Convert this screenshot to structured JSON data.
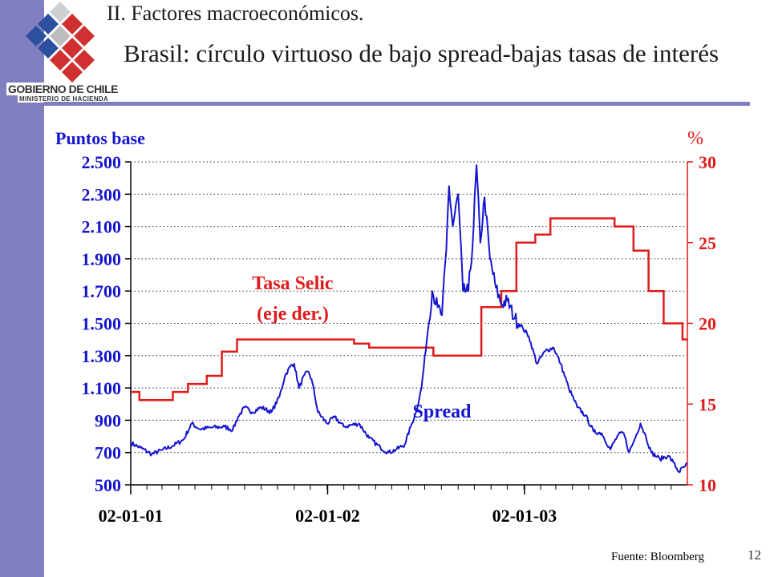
{
  "header": {
    "section_title": "II. Factores macroeconómicos.",
    "slide_title": "Brasil: círculo virtuoso de bajo spread-bajas tasas de interés",
    "logo_text_line1": "GOBIERNO DE CHILE",
    "logo_text_line2": "MINISTERIO DE HACIENDA"
  },
  "footer": {
    "source": "Fuente: Bloomberg",
    "page_number": "12"
  },
  "colors": {
    "spread": "#1515d0",
    "selic": "#e01b1b",
    "band": "#7f7fbf"
  },
  "chart_data": {
    "type": "line",
    "left_axis": {
      "label": "Puntos base",
      "min": 500,
      "max": 2500,
      "ticks": [
        500,
        700,
        900,
        1100,
        1300,
        1500,
        1700,
        1900,
        2100,
        2300,
        2500
      ],
      "tick_labels": [
        "500",
        "700",
        "900",
        "1.100",
        "1.300",
        "1.500",
        "1.700",
        "1.900",
        "2.100",
        "2.300",
        "2.500"
      ]
    },
    "right_axis": {
      "label": "%",
      "min": 10,
      "max": 30,
      "ticks": [
        10,
        15,
        20,
        25,
        30
      ],
      "tick_labels": [
        "10",
        "15",
        "20",
        "25",
        "30"
      ]
    },
    "x_axis": {
      "start": "2001-01-02",
      "end": "2003-10-31",
      "tick_labels": [
        "02-01-01",
        "02-01-02",
        "02-01-03"
      ],
      "tick_dates": [
        "2001-01-02",
        "2002-01-02",
        "2003-01-02"
      ]
    },
    "grid": "horizontal dotted",
    "series": [
      {
        "name": "Spread",
        "axis": "left",
        "annotation": "Spread",
        "points": [
          [
            "2001-01-02",
            760
          ],
          [
            "2001-01-20",
            730
          ],
          [
            "2001-02-10",
            690
          ],
          [
            "2001-03-01",
            715
          ],
          [
            "2001-03-20",
            740
          ],
          [
            "2001-04-10",
            780
          ],
          [
            "2001-04-25",
            880
          ],
          [
            "2001-05-10",
            845
          ],
          [
            "2001-06-01",
            855
          ],
          [
            "2001-06-25",
            860
          ],
          [
            "2001-07-10",
            840
          ],
          [
            "2001-07-20",
            920
          ],
          [
            "2001-08-01",
            980
          ],
          [
            "2001-08-15",
            950
          ],
          [
            "2001-09-01",
            980
          ],
          [
            "2001-09-20",
            950
          ],
          [
            "2001-10-05",
            1050
          ],
          [
            "2001-10-15",
            1175
          ],
          [
            "2001-10-25",
            1235
          ],
          [
            "2001-11-01",
            1250
          ],
          [
            "2001-11-10",
            1100
          ],
          [
            "2001-11-20",
            1180
          ],
          [
            "2001-11-28",
            1200
          ],
          [
            "2001-12-05",
            1130
          ],
          [
            "2001-12-15",
            950
          ],
          [
            "2002-01-01",
            880
          ],
          [
            "2002-01-15",
            920
          ],
          [
            "2002-02-01",
            860
          ],
          [
            "2002-03-01",
            880
          ],
          [
            "2002-03-20",
            790
          ],
          [
            "2002-04-10",
            730
          ],
          [
            "2002-04-25",
            700
          ],
          [
            "2002-05-10",
            720
          ],
          [
            "2002-05-25",
            750
          ],
          [
            "2002-06-05",
            860
          ],
          [
            "2002-06-15",
            950
          ],
          [
            "2002-06-25",
            1100
          ],
          [
            "2002-07-05",
            1400
          ],
          [
            "2002-07-15",
            1700
          ],
          [
            "2002-07-25",
            1600
          ],
          [
            "2002-08-02",
            1550
          ],
          [
            "2002-08-10",
            1950
          ],
          [
            "2002-08-15",
            2350
          ],
          [
            "2002-08-22",
            2100
          ],
          [
            "2002-09-01",
            2300
          ],
          [
            "2002-09-10",
            1700
          ],
          [
            "2002-09-20",
            1700
          ],
          [
            "2002-09-28",
            2000
          ],
          [
            "2002-10-05",
            2480
          ],
          [
            "2002-10-12",
            2000
          ],
          [
            "2002-10-20",
            2280
          ],
          [
            "2002-10-30",
            1900
          ],
          [
            "2002-11-10",
            1720
          ],
          [
            "2002-11-20",
            1620
          ],
          [
            "2002-12-01",
            1640
          ],
          [
            "2002-12-15",
            1530
          ],
          [
            "2002-12-30",
            1470
          ],
          [
            "2003-01-10",
            1420
          ],
          [
            "2003-01-25",
            1250
          ],
          [
            "2003-02-10",
            1330
          ],
          [
            "2003-02-25",
            1350
          ],
          [
            "2003-03-10",
            1250
          ],
          [
            "2003-03-25",
            1100
          ],
          [
            "2003-04-10",
            980
          ],
          [
            "2003-04-25",
            930
          ],
          [
            "2003-05-10",
            830
          ],
          [
            "2003-05-25",
            820
          ],
          [
            "2003-06-10",
            720
          ],
          [
            "2003-06-25",
            810
          ],
          [
            "2003-07-05",
            820
          ],
          [
            "2003-07-15",
            700
          ],
          [
            "2003-07-25",
            780
          ],
          [
            "2003-08-05",
            880
          ],
          [
            "2003-08-15",
            800
          ],
          [
            "2003-08-25",
            700
          ],
          [
            "2003-09-10",
            660
          ],
          [
            "2003-09-25",
            680
          ],
          [
            "2003-10-05",
            640
          ],
          [
            "2003-10-15",
            580
          ],
          [
            "2003-10-25",
            610
          ],
          [
            "2003-10-31",
            630
          ]
        ]
      },
      {
        "name": "Tasa Selic",
        "axis": "right",
        "annotation": "Tasa Selic",
        "annotation_sub": "(eje der.)",
        "steps": [
          [
            "2001-01-02",
            15.75
          ],
          [
            "2001-01-18",
            15.25
          ],
          [
            "2001-03-21",
            15.75
          ],
          [
            "2001-04-18",
            16.25
          ],
          [
            "2001-05-23",
            16.75
          ],
          [
            "2001-06-20",
            18.25
          ],
          [
            "2001-07-18",
            19.0
          ],
          [
            "2002-02-20",
            18.75
          ],
          [
            "2002-03-20",
            18.5
          ],
          [
            "2002-07-17",
            18.0
          ],
          [
            "2002-10-14",
            21.0
          ],
          [
            "2002-11-20",
            22.0
          ],
          [
            "2002-12-18",
            25.0
          ],
          [
            "2003-01-22",
            25.5
          ],
          [
            "2003-02-19",
            26.5
          ],
          [
            "2003-06-18",
            26.0
          ],
          [
            "2003-07-23",
            24.5
          ],
          [
            "2003-08-20",
            22.0
          ],
          [
            "2003-09-17",
            20.0
          ],
          [
            "2003-10-22",
            19.0
          ],
          [
            "2003-10-31",
            19.0
          ]
        ]
      }
    ]
  }
}
